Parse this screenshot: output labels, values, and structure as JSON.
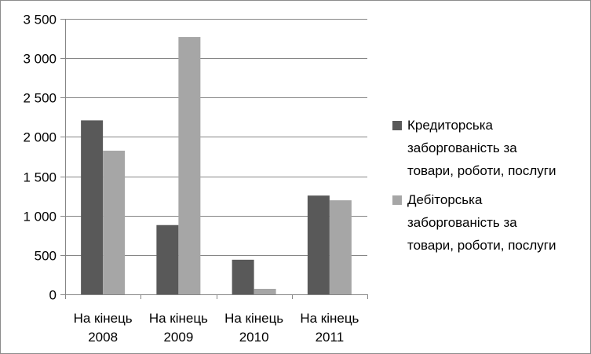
{
  "chart_data": {
    "type": "bar",
    "title": "",
    "xlabel": "",
    "ylabel": "",
    "categories": [
      "На кінець 2008",
      "На кінець 2009",
      "На кінець 2010",
      "На кінець 2011"
    ],
    "category_lines": [
      [
        "На кінець",
        "2008"
      ],
      [
        "На кінець",
        "2009"
      ],
      [
        "На кінець",
        "2010"
      ],
      [
        "На кінець",
        "2011"
      ]
    ],
    "series": [
      {
        "name": "Кредиторська заборгованість за товари, роботи, послуги",
        "values": [
          2210,
          880,
          440,
          1255
        ],
        "color": "#595959"
      },
      {
        "name": "Дебіторська заборгованість за товари, роботи, послуги",
        "values": [
          1825,
          3270,
          70,
          1195
        ],
        "color": "#a6a6a6"
      }
    ],
    "ylim": [
      0,
      3500
    ],
    "yticks": [
      0,
      500,
      1000,
      1500,
      2000,
      2500,
      3000,
      3500
    ],
    "ytick_labels": [
      "0",
      "500",
      "1 000",
      "1 500",
      "2 000",
      "2 500",
      "3 000",
      "3 500"
    ],
    "grid": true,
    "legend_position": "right",
    "legend_lines": [
      [
        "Кредиторська",
        "заборгованість за",
        "товари, роботи, послуги"
      ],
      [
        "Дебіторська",
        "заборгованість за",
        "товари, роботи, послуги"
      ]
    ]
  }
}
